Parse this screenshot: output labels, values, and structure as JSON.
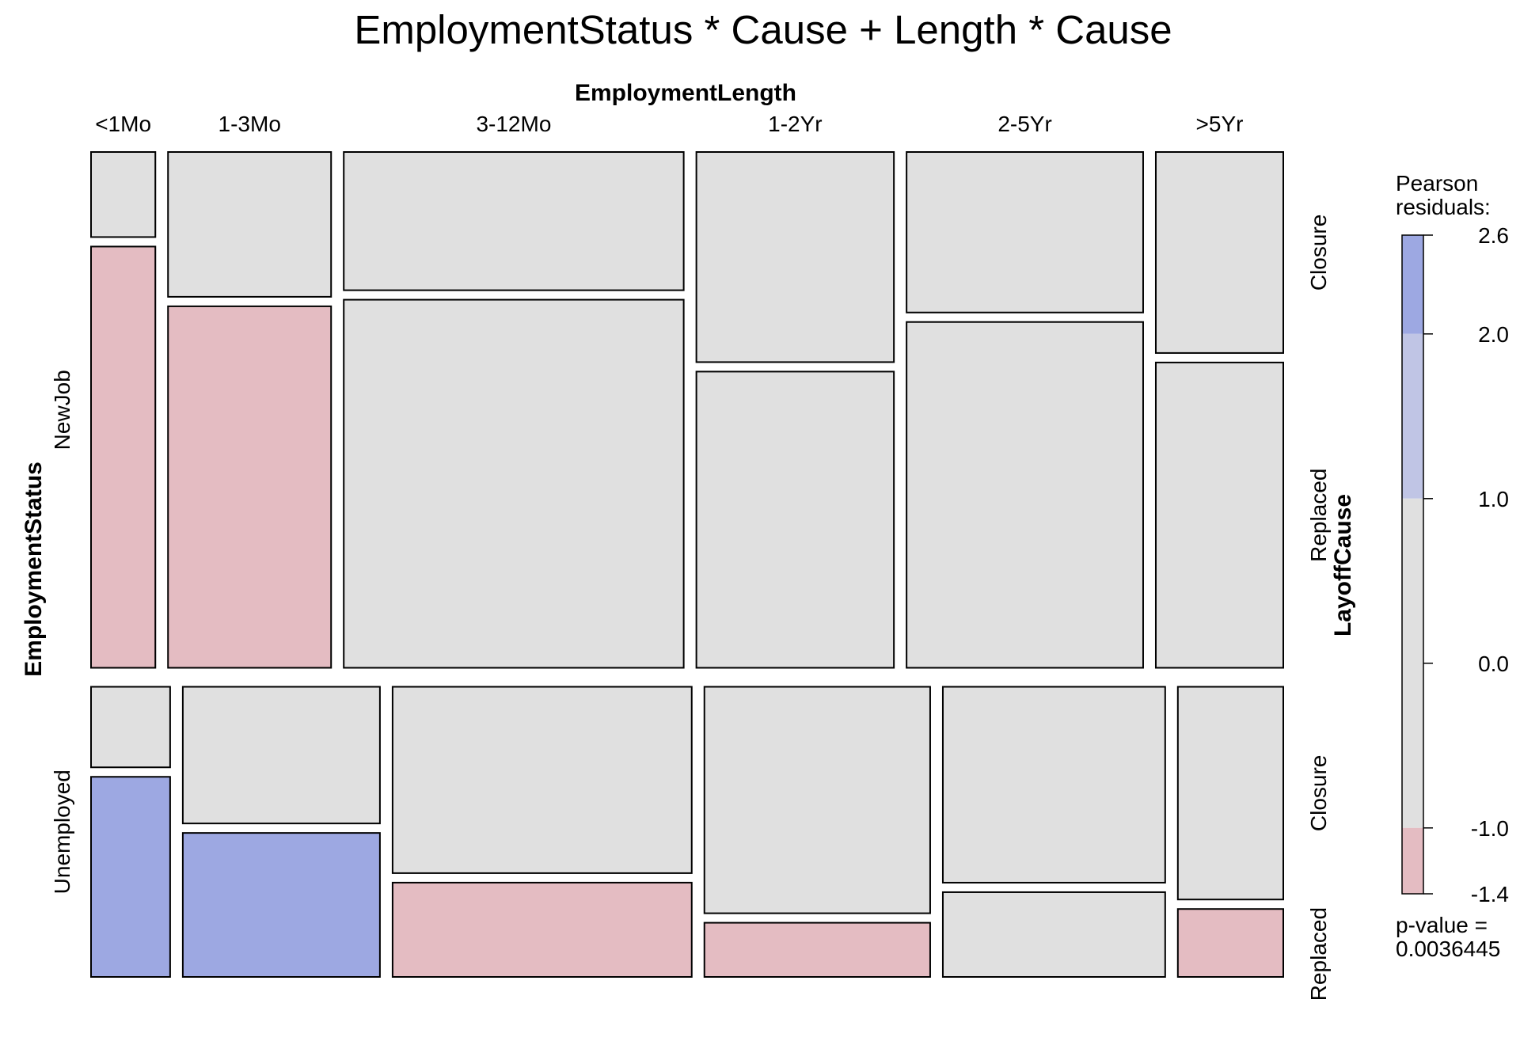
{
  "chart_data": {
    "type": "mosaic",
    "title": "EmploymentStatus * Cause + Length * Cause",
    "column_variable": "EmploymentLength",
    "row_variable": "EmploymentStatus",
    "split_variable": "LayoffCause",
    "column_levels": [
      "<1Mo",
      "1-3Mo",
      "3-12Mo",
      "1-2Yr",
      "2-5Yr",
      ">5Yr"
    ],
    "row_levels": [
      "NewJob",
      "Unemployed"
    ],
    "split_levels": [
      "Closure",
      "Replaced"
    ],
    "row_proportions": [
      0.64,
      0.36
    ],
    "cells": [
      {
        "status": "NewJob",
        "widths": [
          0.056,
          0.142,
          0.296,
          0.172,
          0.206,
          0.111
        ],
        "closure_share": [
          0.168,
          0.286,
          0.273,
          0.415,
          0.317,
          0.397
        ],
        "fill": [
          [
            "neutral",
            "negative"
          ],
          [
            "neutral",
            "negative"
          ],
          [
            "neutral",
            "neutral"
          ],
          [
            "neutral",
            "neutral"
          ],
          [
            "neutral",
            "neutral"
          ],
          [
            "neutral",
            "neutral"
          ]
        ]
      },
      {
        "status": "Unemployed",
        "widths": [
          0.069,
          0.172,
          0.261,
          0.197,
          0.194,
          0.092
        ],
        "closure_share": [
          0.287,
          0.487,
          0.664,
          0.807,
          0.698,
          0.758
        ],
        "fill": [
          [
            "neutral",
            "positive"
          ],
          [
            "neutral",
            "positive"
          ],
          [
            "neutral",
            "negative"
          ],
          [
            "neutral",
            "negative"
          ],
          [
            "neutral",
            "neutral"
          ],
          [
            "neutral",
            "negative"
          ]
        ]
      }
    ],
    "legend": {
      "title_line1": "Pearson",
      "title_line2": "residuals:",
      "range": [
        -1.4,
        2.6
      ],
      "bands": [
        {
          "from": 2.0,
          "to": 2.6,
          "color": "#9DA8E2"
        },
        {
          "from": 1.0,
          "to": 2.0,
          "color": "#C0C5E5"
        },
        {
          "from": -1.0,
          "to": 1.0,
          "color": "#E0E0E0"
        },
        {
          "from": -1.4,
          "to": -1.0,
          "color": "#E4BCC2"
        }
      ],
      "ticks": [
        {
          "value": 2.6,
          "label": "2.6"
        },
        {
          "value": 2.0,
          "label": "2.0"
        },
        {
          "value": 1.0,
          "label": "1.0"
        },
        {
          "value": 0.0,
          "label": "0.0"
        },
        {
          "value": -1.0,
          "label": "-1.0"
        },
        {
          "value": -1.4,
          "label": "-1.4"
        }
      ],
      "pvalue_line1": "p-value =",
      "pvalue_line2": "0.0036445"
    },
    "colors": {
      "positive": "#9DA8E2",
      "neutral": "#E0E0E0",
      "negative": "#E4BCC2"
    }
  }
}
